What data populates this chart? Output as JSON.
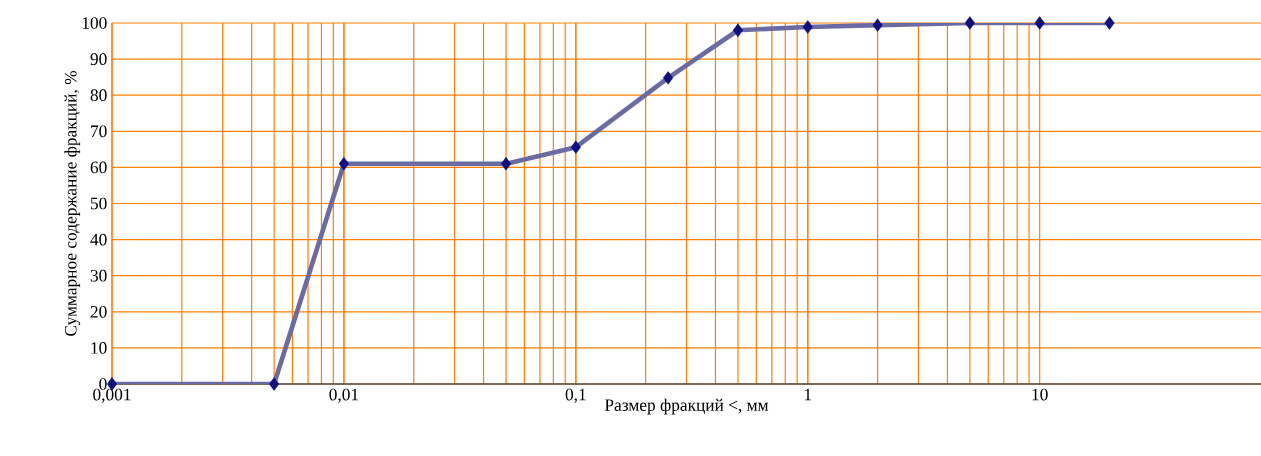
{
  "chart_data": {
    "type": "line",
    "xlabel": "Размер фракций <, мм",
    "ylabel": "Суммарное содержание фракций, %",
    "x": [
      0.001,
      0.005,
      0.01,
      0.05,
      0.1,
      0.25,
      0.5,
      1,
      2,
      5,
      10,
      20
    ],
    "series": [
      {
        "color": "#6b6ba3",
        "values": [
          0,
          0,
          61,
          61,
          65.6,
          84.8,
          98,
          98.9,
          99.4,
          100,
          100,
          100
        ]
      }
    ],
    "log": "x",
    "xlim": [
      0.001,
      90
    ],
    "ylim": [
      0,
      100
    ],
    "xticks": [
      {
        "value": 0.001,
        "label": "0,001"
      },
      {
        "value": 0.01,
        "label": "0,01"
      },
      {
        "value": 0.1,
        "label": "0,1"
      },
      1,
      10
    ],
    "yticks": [
      0,
      10,
      20,
      30,
      40,
      50,
      60,
      70,
      80,
      90,
      100
    ],
    "grid": true,
    "marker": "diamond",
    "line_style": "solid"
  }
}
